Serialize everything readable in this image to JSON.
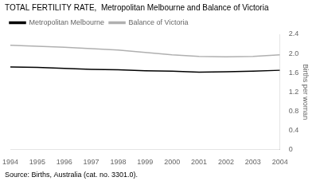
{
  "chart_data": {
    "type": "line",
    "title": "TOTAL FERTILITY RATE,  Metropolitan Melbourne and Balance of Victoria",
    "y_label": "Births per woman",
    "source": "Source: Births, Australia (cat. no. 3301.0).",
    "x": [
      1994,
      1995,
      1996,
      1997,
      1998,
      1999,
      2000,
      2001,
      2002,
      2003,
      2004
    ],
    "series": [
      {
        "name": "Metropolitan Melbourne",
        "color": "#000000",
        "values": [
          1.72,
          1.71,
          1.69,
          1.67,
          1.66,
          1.64,
          1.63,
          1.61,
          1.62,
          1.63,
          1.65
        ]
      },
      {
        "name": "Balance of Victoria",
        "color": "#b0b0b0",
        "values": [
          2.17,
          2.15,
          2.13,
          2.1,
          2.07,
          2.02,
          1.97,
          1.94,
          1.93,
          1.94,
          1.97
        ]
      }
    ],
    "xlim": [
      1994,
      2004
    ],
    "xticks": [
      1994,
      1995,
      1996,
      1997,
      1998,
      1999,
      2000,
      2001,
      2002,
      2003,
      2004
    ],
    "ylim": [
      0,
      2.4
    ],
    "yticks": [
      0,
      0.4,
      0.8,
      1.2,
      1.6,
      {
        "value": 2.0,
        "label": "2.0"
      },
      2.4
    ],
    "grid": false,
    "legend": "top"
  }
}
